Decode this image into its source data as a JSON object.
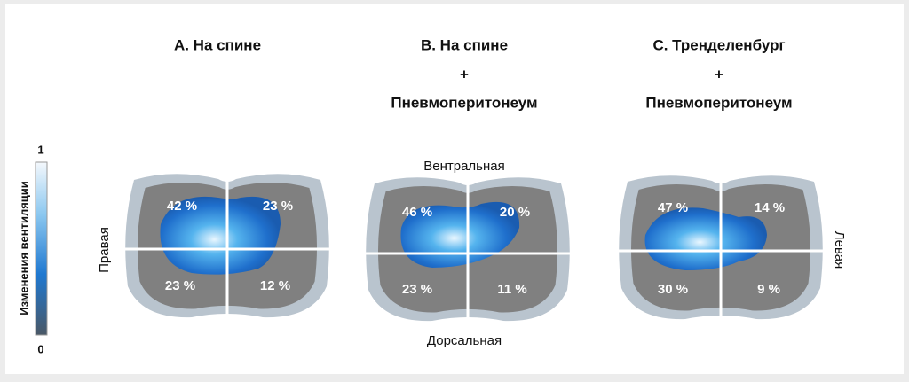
{
  "colorbar": {
    "title": "Изменения вентиляции",
    "max_label": "1",
    "min_label": "0"
  },
  "orientation": {
    "top": "Вентральная",
    "bottom": "Дорсальная",
    "left": "Правая",
    "right": "Левая"
  },
  "panels": [
    {
      "title_lines": [
        "A. На спине"
      ],
      "quadrants": [
        "42 %",
        "23 %",
        "23 %",
        "12 %"
      ]
    },
    {
      "title_lines": [
        "B. На спине",
        "+",
        "Пневмоперитонеум"
      ],
      "quadrants": [
        "46 %",
        "20 %",
        "23 %",
        "11 %"
      ]
    },
    {
      "title_lines": [
        "C. Тренделенбург",
        "+",
        "Пневмоперитонеум"
      ],
      "quadrants": [
        "47 %",
        "14 %",
        "30 %",
        "9 %"
      ]
    }
  ]
}
